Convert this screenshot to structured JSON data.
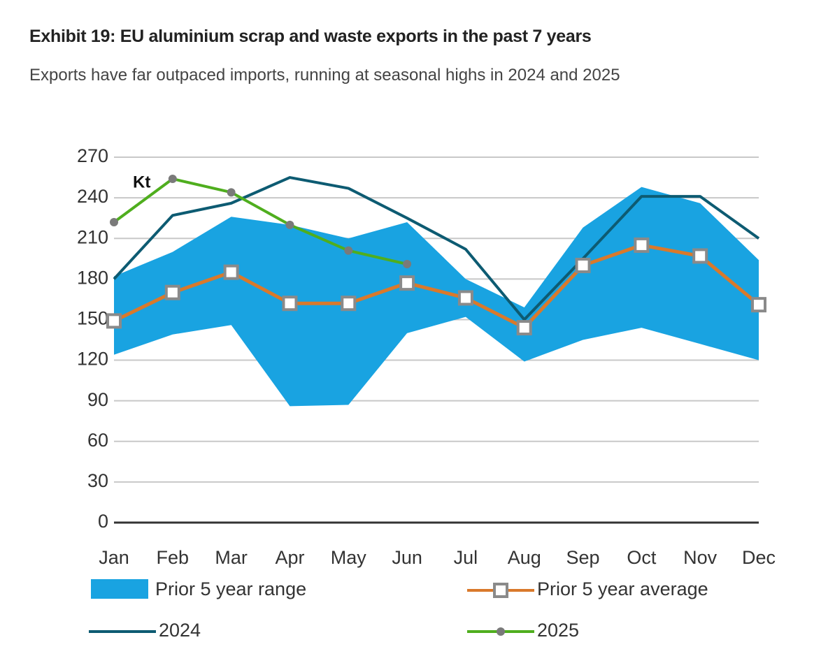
{
  "chart_data": {
    "type": "line",
    "title": "Exhibit 19: EU aluminium scrap and waste exports in the past 7 years",
    "subtitle": "Exports have far outpaced imports, running at seasonal highs in 2024 and 2025",
    "annotation": "Kt",
    "categories": [
      "Jan",
      "Feb",
      "Mar",
      "Apr",
      "May",
      "Jun",
      "Jul",
      "Aug",
      "Sep",
      "Oct",
      "Nov",
      "Dec"
    ],
    "ylim": [
      0,
      270
    ],
    "yticks": [
      0,
      30,
      60,
      90,
      120,
      150,
      180,
      210,
      240,
      270
    ],
    "grid": true,
    "range": {
      "name": "Prior 5 year range",
      "color": "#19a3e1",
      "high": [
        182,
        200,
        226,
        220,
        210,
        222,
        180,
        159,
        218,
        248,
        236,
        194
      ],
      "low": [
        124,
        139,
        146,
        86,
        87,
        140,
        152,
        119,
        135,
        144,
        132,
        120
      ]
    },
    "series": [
      {
        "name": "Prior 5 year average",
        "color": "#d9792b",
        "marker": "square",
        "values": [
          149,
          170,
          185,
          162,
          162,
          177,
          166,
          144,
          190,
          205,
          197,
          161
        ]
      },
      {
        "name": "2024",
        "color": "#0d5b72",
        "values": [
          180,
          227,
          236,
          255,
          247,
          225,
          202,
          150,
          195,
          241,
          241,
          210
        ]
      },
      {
        "name": "2025",
        "color": "#4fae1e",
        "marker": "dot",
        "values": [
          222,
          254,
          244,
          220,
          201,
          191,
          null,
          null,
          null,
          null,
          null,
          null
        ]
      }
    ]
  }
}
